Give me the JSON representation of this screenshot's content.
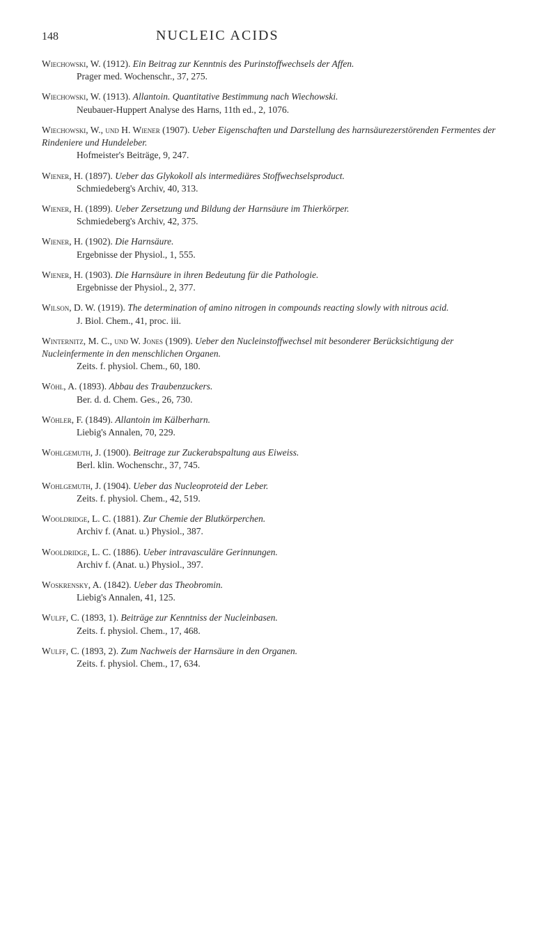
{
  "page_number": "148",
  "page_title": "NUCLEIC ACIDS",
  "references": [
    {
      "author": "Wiechowski, W.",
      "year": "(1912).",
      "title": "Ein Beitrag zur Kenntnis des Purinstoffwechsels der Affen.",
      "source": "Prager med. Wochenschr., 37, 275."
    },
    {
      "author": "Wiechowski, W.",
      "year": "(1913).",
      "title": "Allantoin. Quantitative Bestimmung nach Wiechowski.",
      "source": "Neubauer-Huppert Analyse des Harns, 11th ed., 2, 1076."
    },
    {
      "author": "Wiechowski, W., und H. Wiener",
      "year": "(1907).",
      "title": "Ueber Eigenschaften und Darstellung des harnsäurezerstörenden Fermentes der Rindeniere und Hundeleber.",
      "source": "Hofmeister's Beiträge, 9, 247."
    },
    {
      "author": "Wiener, H.",
      "year": "(1897).",
      "title": "Ueber das Glykokoll als intermediäres Stoffwechselsproduct.",
      "source": "Schmiedeberg's Archiv, 40, 313."
    },
    {
      "author": "Wiener, H.",
      "year": "(1899).",
      "title": "Ueber Zersetzung und Bildung der Harnsäure im Thierkörper.",
      "source": "Schmiedeberg's Archiv, 42, 375."
    },
    {
      "author": "Wiener, H.",
      "year": "(1902).",
      "title": "Die Harnsäure.",
      "source": "Ergebnisse der Physiol., 1, 555."
    },
    {
      "author": "Wiener, H.",
      "year": "(1903).",
      "title": "Die Harnsäure in ihren Bedeutung für die Pathologie.",
      "source": "Ergebnisse der Physiol., 2, 377."
    },
    {
      "author": "Wilson, D. W.",
      "year": "(1919).",
      "title": "The determination of amino nitrogen in compounds reacting slowly with nitrous acid.",
      "source": "J. Biol. Chem., 41, proc. iii."
    },
    {
      "author": "Winternitz, M. C., und W. Jones",
      "year": "(1909).",
      "title": "Ueber den Nucleinstoffwechsel mit besonderer Berücksichtigung der Nucleinfermente in den menschlichen Organen.",
      "source": "Zeits. f. physiol. Chem., 60, 180."
    },
    {
      "author": "Wöhl, A.",
      "year": "(1893).",
      "title": "Abbau des Traubenzuckers.",
      "source": "Ber. d. d. Chem. Ges., 26, 730."
    },
    {
      "author": "Wöhler, F.",
      "year": "(1849).",
      "title": "Allantoin im Kälberharn.",
      "source": "Liebig's Annalen, 70, 229."
    },
    {
      "author": "Wohlgemuth, J.",
      "year": "(1900).",
      "title": "Beitrage zur Zuckerabspaltung aus Eiweiss.",
      "source": "Berl. klin. Wochenschr., 37, 745."
    },
    {
      "author": "Wohlgemuth, J.",
      "year": "(1904).",
      "title": "Ueber das Nucleoproteid der Leber.",
      "source": "Zeits. f. physiol. Chem., 42, 519."
    },
    {
      "author": "Wooldridge, L. C.",
      "year": "(1881).",
      "title": "Zur Chemie der Blutkörperchen.",
      "source": "Archiv f. (Anat. u.) Physiol., 387."
    },
    {
      "author": "Wooldridge, L. C.",
      "year": "(1886).",
      "title": "Ueber intravasculäre Gerinnungen.",
      "source": "Archiv f. (Anat. u.) Physiol., 397."
    },
    {
      "author": "Woskrensky, A.",
      "year": "(1842).",
      "title": "Ueber das Theobromin.",
      "source": "Liebig's Annalen, 41, 125."
    },
    {
      "author": "Wulff, C.",
      "year": "(1893, 1).",
      "title": "Beiträge zur Kenntniss der Nucleinbasen.",
      "source": "Zeits. f. physiol. Chem., 17, 468."
    },
    {
      "author": "Wulff, C.",
      "year": "(1893, 2).",
      "title": "Zum Nachweis der Harnsäure in den Organen.",
      "source": "Zeits. f. physiol. Chem., 17, 634."
    }
  ]
}
